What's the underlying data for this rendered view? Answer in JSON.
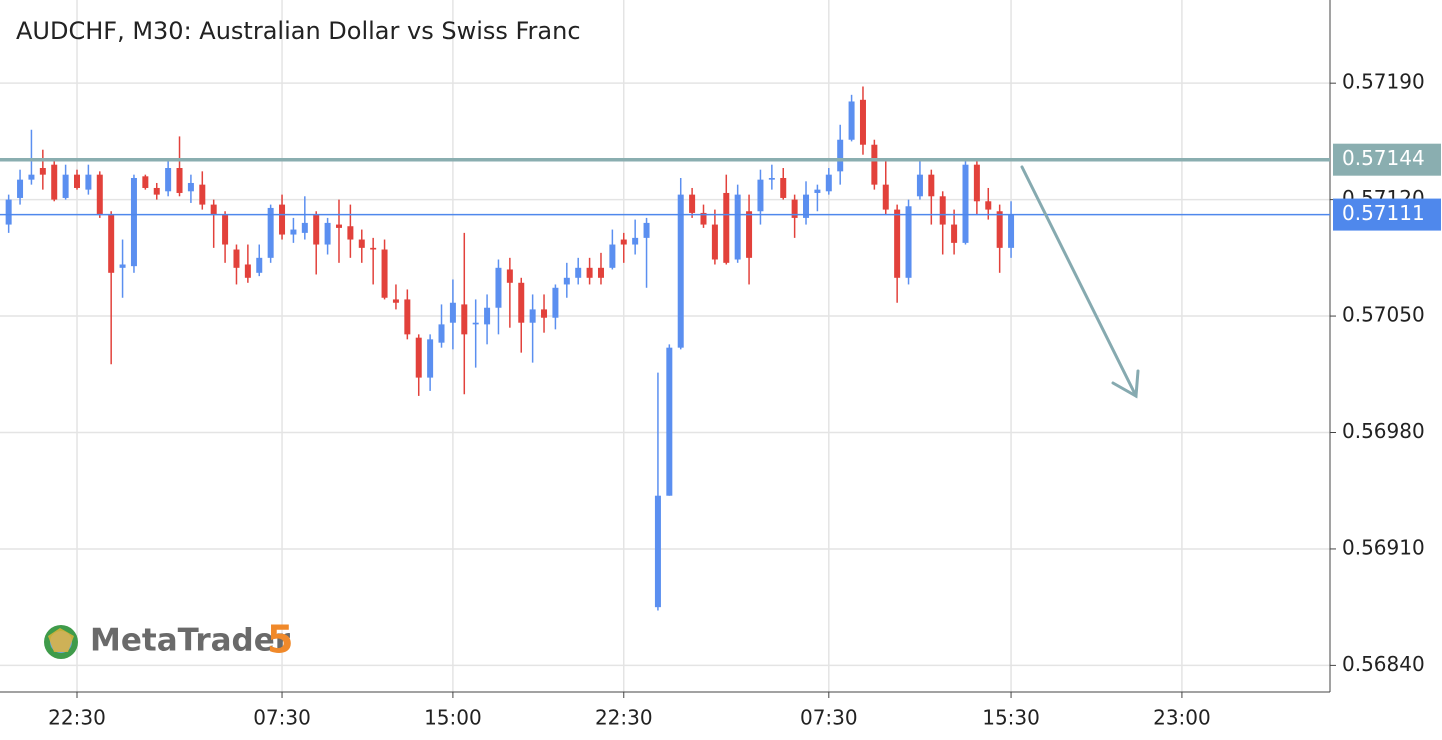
{
  "chart_data": {
    "type": "candlestick",
    "title": "AUDCHF, M30: Australian Dollar vs Swiss Franc",
    "watermark": "MetaTrader",
    "watermark_number": "5",
    "up_color": "#5b8ff0",
    "down_color": "#e2413b",
    "grid": true,
    "xlim": [
      -0.76,
      116
    ],
    "xticks": [
      {
        "value": 6,
        "label": "22:30"
      },
      {
        "value": 24,
        "label": "07:30"
      },
      {
        "value": 39,
        "label": "15:00"
      },
      {
        "value": 54,
        "label": "22:30"
      },
      {
        "value": 72,
        "label": "07:30"
      },
      {
        "value": 88,
        "label": "15:30"
      },
      {
        "value": 103,
        "label": "23:00"
      }
    ],
    "ylim": [
      0.56824,
      0.5724
    ],
    "yticks": [
      {
        "value": 0.5684,
        "label": "0.56840"
      },
      {
        "value": 0.5691,
        "label": "0.56910"
      },
      {
        "value": 0.5698,
        "label": "0.56980"
      },
      {
        "value": 0.5705,
        "label": "0.57050"
      },
      {
        "value": 0.5712,
        "label": "0.57120"
      },
      {
        "value": 0.5719,
        "label": "0.57190"
      }
    ],
    "levels": [
      {
        "value": 0.57144,
        "color": "#8aaeb0"
      },
      {
        "value": 0.57111,
        "color": "#4f88ec"
      }
    ],
    "open": [
      0.57105,
      0.57121,
      0.57132,
      0.57139,
      0.57141,
      0.57121,
      0.57135,
      0.57126,
      0.57135,
      0.57111,
      0.57079,
      0.5708,
      0.57134,
      0.57127,
      0.57125,
      0.57139,
      0.57125,
      0.57129,
      0.57117,
      0.57111,
      0.5709,
      0.57081,
      0.57076,
      0.57085,
      0.57117,
      0.57099,
      0.571,
      0.57111,
      0.57093,
      0.57105,
      0.57104,
      0.57096,
      0.57091,
      0.5709,
      0.5706,
      0.5706,
      0.57037,
      0.57013,
      0.57034,
      0.57046,
      0.57057,
      0.57045,
      0.57045,
      0.57055,
      0.57078,
      0.5707,
      0.57046,
      0.57054,
      0.57049,
      0.57069,
      0.57073,
      0.57079,
      0.57079,
      0.57079,
      0.57096,
      0.57093,
      0.57097,
      0.56875,
      0.56942,
      0.57031,
      0.57123,
      0.57112,
      0.57105,
      0.57124,
      0.57084,
      0.57113,
      0.57113,
      0.57132,
      0.57133,
      0.5712,
      0.57109,
      0.57124,
      0.57125,
      0.57137,
      0.57156,
      0.5718,
      0.57153,
      0.57129,
      0.57114,
      0.57073,
      0.57122,
      0.57135,
      0.57122,
      0.57105,
      0.57094,
      0.57141,
      0.57119,
      0.57113,
      0.57091
    ],
    "high": [
      0.57123,
      0.57138,
      0.57162,
      0.5715,
      0.57143,
      0.57141,
      0.57138,
      0.57141,
      0.57137,
      0.57113,
      0.57096,
      0.57135,
      0.57135,
      0.5713,
      0.57144,
      0.57158,
      0.57135,
      0.57137,
      0.5712,
      0.57113,
      0.57093,
      0.57093,
      0.57093,
      0.57117,
      0.57123,
      0.57109,
      0.57122,
      0.57113,
      0.57109,
      0.5712,
      0.57117,
      0.57102,
      0.57097,
      0.57096,
      0.57069,
      0.57066,
      0.57039,
      0.57039,
      0.57057,
      0.57072,
      0.571,
      0.5706,
      0.57063,
      0.57084,
      0.57085,
      0.57073,
      0.57063,
      0.57063,
      0.57069,
      0.57082,
      0.57085,
      0.57085,
      0.57088,
      0.57102,
      0.571,
      0.57108,
      0.57109,
      0.57016,
      0.57033,
      0.57133,
      0.57127,
      0.57117,
      0.57114,
      0.57135,
      0.57129,
      0.57123,
      0.57138,
      0.57141,
      0.57139,
      0.57123,
      0.57131,
      0.57129,
      0.57139,
      0.57165,
      0.57183,
      0.57188,
      0.57156,
      0.57144,
      0.57117,
      0.5712,
      0.57145,
      0.57138,
      0.57125,
      0.57114,
      0.57145,
      0.57144,
      0.57127,
      0.57117,
      0.57119
    ],
    "low": [
      0.571,
      0.57117,
      0.57129,
      0.57126,
      0.57119,
      0.5712,
      0.57126,
      0.57123,
      0.57109,
      0.57021,
      0.57061,
      0.57076,
      0.57126,
      0.5712,
      0.57122,
      0.57122,
      0.57118,
      0.57114,
      0.57091,
      0.57082,
      0.57069,
      0.5707,
      0.57074,
      0.57082,
      0.57096,
      0.57094,
      0.57096,
      0.57075,
      0.57087,
      0.57082,
      0.57085,
      0.57082,
      0.57069,
      0.5706,
      0.57054,
      0.57036,
      0.57002,
      0.57005,
      0.57031,
      0.5703,
      0.57003,
      0.57019,
      0.57033,
      0.57039,
      0.57043,
      0.57028,
      0.57022,
      0.5704,
      0.57042,
      0.57061,
      0.57069,
      0.57069,
      0.57069,
      0.57078,
      0.57082,
      0.57087,
      0.57067,
      0.56873,
      0.56942,
      0.5703,
      0.57109,
      0.57103,
      0.57081,
      0.57081,
      0.57082,
      0.57069,
      0.57105,
      0.57126,
      0.5712,
      0.57097,
      0.57105,
      0.57113,
      0.57123,
      0.57129,
      0.57155,
      0.57147,
      0.57126,
      0.57111,
      0.57058,
      0.57069,
      0.5712,
      0.57105,
      0.57087,
      0.57087,
      0.57093,
      0.57111,
      0.57108,
      0.57076,
      0.57085
    ],
    "close": [
      0.5712,
      0.57132,
      0.57135,
      0.57135,
      0.5712,
      0.57135,
      0.57127,
      0.57135,
      0.57111,
      0.57076,
      0.57081,
      0.57133,
      0.57127,
      0.57123,
      0.57139,
      0.57124,
      0.5713,
      0.57117,
      0.57111,
      0.57093,
      0.57079,
      0.57073,
      0.57085,
      0.57115,
      0.57099,
      0.57102,
      0.57106,
      0.57093,
      0.57106,
      0.57103,
      0.57096,
      0.57091,
      0.5709,
      0.57061,
      0.57058,
      0.57039,
      0.57013,
      0.57036,
      0.57045,
      0.57058,
      0.57039,
      0.57046,
      0.57055,
      0.57079,
      0.5707,
      0.57046,
      0.57054,
      0.57049,
      0.57067,
      0.57073,
      0.57079,
      0.57073,
      0.57073,
      0.57093,
      0.57093,
      0.57097,
      0.57106,
      0.56942,
      0.57031,
      0.57123,
      0.57112,
      0.57105,
      0.57084,
      0.57082,
      0.57123,
      0.57085,
      0.57132,
      0.57133,
      0.57121,
      0.57109,
      0.57123,
      0.57126,
      0.57135,
      0.57156,
      0.57179,
      0.57153,
      0.57129,
      0.57114,
      0.57073,
      0.57116,
      0.57135,
      0.57122,
      0.57105,
      0.57094,
      0.57141,
      0.57119,
      0.57114,
      0.57091,
      0.57111
    ]
  }
}
